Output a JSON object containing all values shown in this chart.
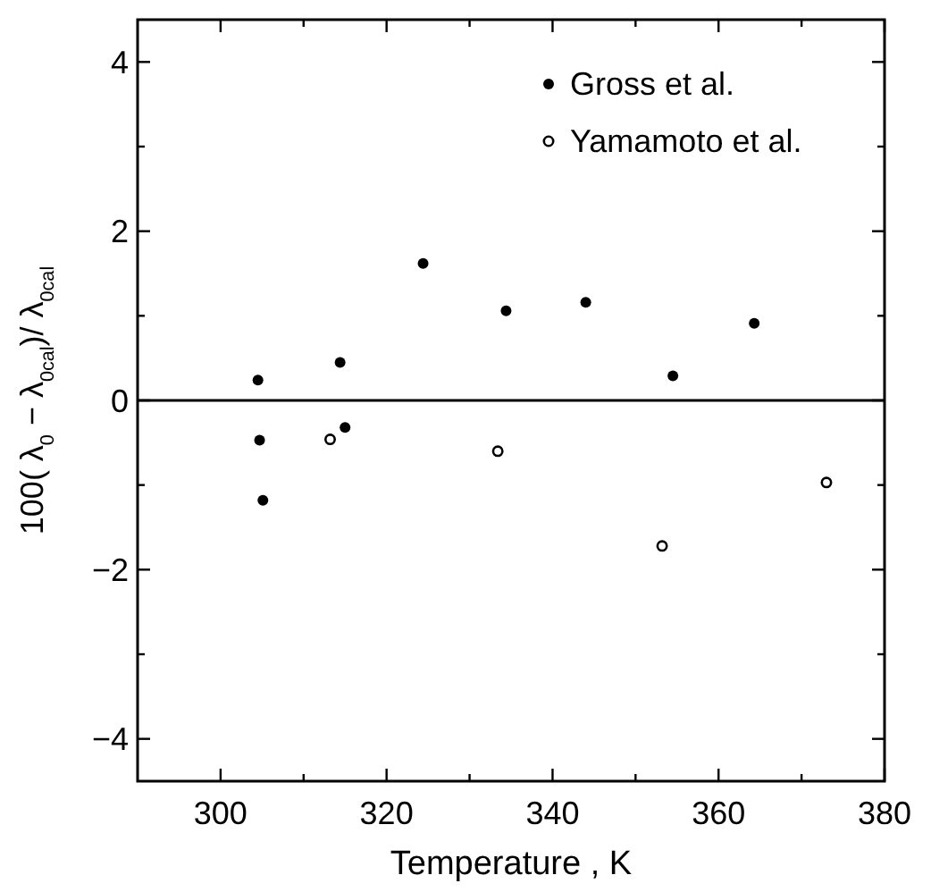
{
  "chart_data": {
    "type": "scatter",
    "xlabel": "Temperature , K",
    "ylabel": "100( λ$_{0}$ − λ$_{0cal}$)/ λ$_{0cal}$",
    "xlim": [
      290,
      380
    ],
    "xticks": [
      300,
      {
        "value": 310,
        "label": null
      },
      320,
      {
        "value": 330,
        "label": null
      },
      340,
      {
        "value": 350,
        "label": null
      },
      360,
      {
        "value": 370,
        "label": null
      },
      380
    ],
    "ylim": [
      -4.5,
      4.5
    ],
    "yticks": [
      -4,
      {
        "value": -3,
        "label": null
      },
      -2,
      {
        "value": -1,
        "label": null
      },
      0,
      {
        "value": 1,
        "label": null
      },
      2,
      {
        "value": 3,
        "label": null
      },
      4
    ],
    "ref_lines": [
      {
        "axis": "y",
        "value": 0,
        "color": "#000000"
      }
    ],
    "legend": "top right",
    "grid": false,
    "marker": "circle",
    "series": [
      {
        "name": "Gross et al.",
        "color": "#000000",
        "x": [
          304.5,
          304.7,
          305.1,
          314.4,
          315.0,
          324.4,
          334.4,
          344.0,
          354.5,
          364.3
        ],
        "values": [
          0.24,
          -0.47,
          -1.18,
          0.45,
          -0.32,
          1.62,
          1.06,
          1.16,
          0.29,
          0.91
        ]
      },
      {
        "name": "Yamamoto et al.",
        "color": "#000000",
        "x": [
          313.2,
          333.4,
          353.2,
          373.0
        ],
        "values": [
          -0.46,
          -0.6,
          -1.72,
          -0.97
        ]
      }
    ]
  }
}
